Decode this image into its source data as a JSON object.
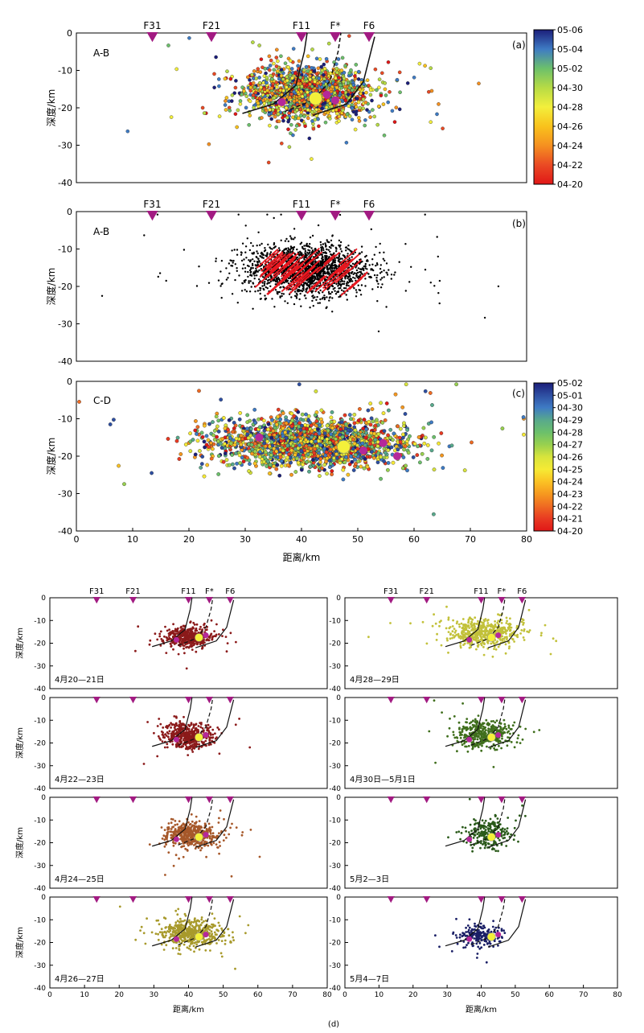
{
  "figure": {
    "sublabel_d": "(d)"
  },
  "chart_data": [
    {
      "id": "a",
      "type": "scatter",
      "panel_label": "(a)",
      "section_label": "A-B",
      "ylabel": "深度/km",
      "xlim": [
        0,
        80
      ],
      "ylim": [
        -40,
        0
      ],
      "yticks": [
        0,
        -10,
        -20,
        -30,
        -40
      ],
      "faults": [
        {
          "name": "F31",
          "x": 13.5
        },
        {
          "name": "F21",
          "x": 24
        },
        {
          "name": "F11",
          "x": 40
        },
        {
          "name": "F*",
          "x": 46
        },
        {
          "name": "F6",
          "x": 52
        }
      ],
      "colorbar": {
        "labels": [
          "05-06",
          "05-04",
          "05-02",
          "04-30",
          "04-28",
          "04-26",
          "04-24",
          "04-22",
          "04-20"
        ],
        "colors": [
          "#1b1e7a",
          "#3e7bc4",
          "#6cc06b",
          "#b7db45",
          "#f3ef3c",
          "#f9c21c",
          "#f59020",
          "#ea4a24",
          "#e01717"
        ]
      },
      "cloud": {
        "center": [
          41,
          -16
        ],
        "spread": [
          6,
          4
        ],
        "count": 2000
      },
      "mainshock": {
        "x": 42.5,
        "y": -17.5
      },
      "large_events": [
        {
          "x": 36.5,
          "y": -18.5
        },
        {
          "x": 44.5,
          "y": -16.5
        },
        {
          "x": 46,
          "y": -18
        }
      ]
    },
    {
      "id": "b",
      "type": "scatter",
      "panel_label": "(b)",
      "section_label": "A-B",
      "ylabel": "深度/km",
      "xlim": [
        0,
        80
      ],
      "ylim": [
        -40,
        0
      ],
      "yticks": [
        0,
        -10,
        -20,
        -30,
        -40
      ],
      "faults": [
        {
          "name": "F31",
          "x": 13.5
        },
        {
          "name": "F21",
          "x": 24
        },
        {
          "name": "F11",
          "x": 40
        },
        {
          "name": "F*",
          "x": 46
        },
        {
          "name": "F6",
          "x": 52
        }
      ],
      "cloud": {
        "center": [
          41,
          -16
        ],
        "spread": [
          6,
          3.8
        ],
        "count": 2200
      }
    },
    {
      "id": "c",
      "type": "scatter",
      "panel_label": "(c)",
      "section_label": "C-D",
      "xlabel": "距离/km",
      "ylabel": "深度/km",
      "xlim": [
        0,
        80
      ],
      "ylim": [
        -40,
        0
      ],
      "xticks": [
        0,
        10,
        20,
        30,
        40,
        50,
        60,
        70,
        80
      ],
      "yticks": [
        0,
        -10,
        -20,
        -30,
        -40
      ],
      "colorbar": {
        "labels": [
          "05-02",
          "05-01",
          "04-30",
          "04-29",
          "04-28",
          "04-27",
          "04-26",
          "04-25",
          "04-24",
          "04-23",
          "04-22",
          "04-21",
          "04-20"
        ],
        "colors": [
          "#1b1e7a",
          "#2e4fa2",
          "#3e7bc4",
          "#58a98c",
          "#6cc06b",
          "#98d04f",
          "#d8e43c",
          "#f6ea34",
          "#fbc224",
          "#f6981f",
          "#ef6a22",
          "#e83a22",
          "#e01717"
        ]
      },
      "cloud": {
        "center": [
          42,
          -16.5
        ],
        "spread": [
          9,
          3.5
        ],
        "count": 2400
      },
      "mainshock": {
        "x": 47.5,
        "y": -17.5
      },
      "large_events": [
        {
          "x": 32.5,
          "y": -15
        },
        {
          "x": 51,
          "y": -18.5
        },
        {
          "x": 54.5,
          "y": -16.5
        },
        {
          "x": 57,
          "y": -20
        }
      ]
    },
    {
      "id": "d",
      "type": "scatter",
      "xlabel": "距离/km",
      "ylabel": "深度/km",
      "xlim": [
        0,
        80
      ],
      "ylim": [
        -40,
        0
      ],
      "xticks": [
        0,
        10,
        20,
        30,
        40,
        50,
        60,
        70,
        80
      ],
      "yticks": [
        0,
        -10,
        -20,
        -30,
        -40
      ],
      "faults": [
        {
          "name": "F31",
          "x": 13.5
        },
        {
          "name": "F21",
          "x": 24
        },
        {
          "name": "F11",
          "x": 40
        },
        {
          "name": "F*",
          "x": 46
        },
        {
          "name": "F6",
          "x": 52
        }
      ],
      "mainshock": {
        "x": 43,
        "y": -17.5
      },
      "large_events": [
        {
          "x": 36.5,
          "y": -18.5
        },
        {
          "x": 45,
          "y": -16.5
        }
      ],
      "periods": [
        {
          "label": "4月20—21日",
          "color": "#8b1a1a",
          "count": 420,
          "center": [
            40,
            -17.5
          ],
          "spread": [
            3.5,
            2.5
          ]
        },
        {
          "label": "4月22—23日",
          "color": "#8b1a1a",
          "count": 480,
          "center": [
            40,
            -17
          ],
          "spread": [
            3.5,
            2.6
          ]
        },
        {
          "label": "4月24—25日",
          "color": "#a6582a",
          "count": 480,
          "center": [
            41,
            -16.5
          ],
          "spread": [
            4,
            3
          ]
        },
        {
          "label": "4月26—27日",
          "color": "#a89a2c",
          "count": 520,
          "center": [
            41,
            -16
          ],
          "spread": [
            4.5,
            3
          ]
        },
        {
          "label": "4月28—29日",
          "color": "#c2c13a",
          "count": 560,
          "center": [
            41,
            -15.5
          ],
          "spread": [
            5,
            3
          ]
        },
        {
          "label": "4月30日—5月1日",
          "color": "#3f6e1c",
          "count": 420,
          "center": [
            41,
            -16
          ],
          "spread": [
            4,
            3
          ]
        },
        {
          "label": "5月2—3日",
          "color": "#2a5a1a",
          "count": 240,
          "center": [
            42,
            -16
          ],
          "spread": [
            3.5,
            3
          ]
        },
        {
          "label": "5月4—7日",
          "color": "#1a1f66",
          "count": 200,
          "center": [
            40,
            -17
          ],
          "spread": [
            3,
            2.5
          ]
        }
      ]
    }
  ]
}
